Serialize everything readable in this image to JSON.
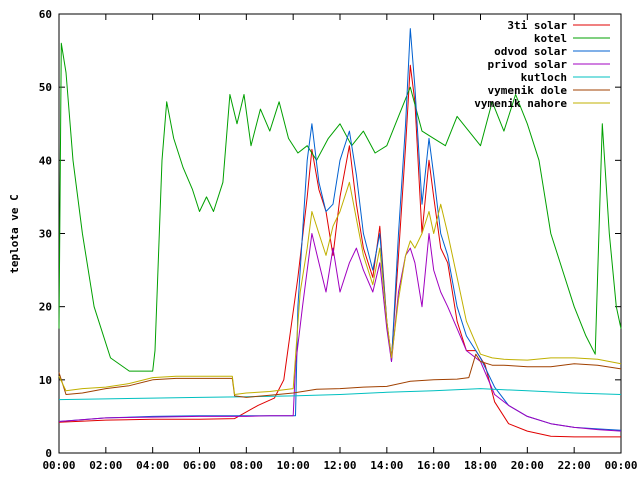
{
  "chart_data": {
    "type": "line",
    "title": "",
    "xlabel": "",
    "ylabel": "teplota ve C",
    "x_ticks": [
      "00:00",
      "02:00",
      "04:00",
      "06:00",
      "08:00",
      "10:00",
      "12:00",
      "14:00",
      "16:00",
      "18:00",
      "20:00",
      "22:00",
      "00:00"
    ],
    "y_ticks": [
      "0",
      "10",
      "20",
      "30",
      "40",
      "50",
      "60"
    ],
    "xlim": [
      0,
      24
    ],
    "ylim": [
      0,
      60
    ],
    "grid": false,
    "legend_position": "top-right",
    "series": [
      {
        "name": "3ti solar",
        "color": "#e00000",
        "points": [
          [
            0,
            4.2
          ],
          [
            2,
            4.5
          ],
          [
            4,
            4.6
          ],
          [
            6,
            4.6
          ],
          [
            7.5,
            4.7
          ],
          [
            8.5,
            6.5
          ],
          [
            9.2,
            7.5
          ],
          [
            9.6,
            10
          ],
          [
            10.2,
            24
          ],
          [
            10.6,
            35
          ],
          [
            10.8,
            41.5
          ],
          [
            11.1,
            36
          ],
          [
            11.4,
            33
          ],
          [
            11.7,
            27
          ],
          [
            12.0,
            35
          ],
          [
            12.4,
            42
          ],
          [
            12.7,
            34
          ],
          [
            13.0,
            28
          ],
          [
            13.4,
            24
          ],
          [
            13.7,
            31
          ],
          [
            14.0,
            18
          ],
          [
            14.2,
            13
          ],
          [
            14.5,
            27
          ],
          [
            14.8,
            42
          ],
          [
            15.0,
            53
          ],
          [
            15.2,
            48
          ],
          [
            15.5,
            30
          ],
          [
            15.8,
            40
          ],
          [
            16.0,
            35
          ],
          [
            16.3,
            28
          ],
          [
            16.6,
            26
          ],
          [
            17.0,
            18
          ],
          [
            17.4,
            14
          ],
          [
            17.8,
            14
          ],
          [
            18.2,
            12
          ],
          [
            18.6,
            7
          ],
          [
            19.2,
            4
          ],
          [
            20,
            3
          ],
          [
            21,
            2.3
          ],
          [
            22,
            2.2
          ],
          [
            23,
            2.2
          ],
          [
            24,
            2.2
          ]
        ]
      },
      {
        "name": "kotel",
        "color": "#00a000",
        "points": [
          [
            0,
            17
          ],
          [
            0.1,
            56
          ],
          [
            0.3,
            52
          ],
          [
            0.6,
            40
          ],
          [
            1.0,
            30
          ],
          [
            1.5,
            20
          ],
          [
            2.2,
            13
          ],
          [
            3,
            11.2
          ],
          [
            4,
            11.2
          ],
          [
            4.1,
            14
          ],
          [
            4.4,
            40
          ],
          [
            4.6,
            48
          ],
          [
            4.9,
            43
          ],
          [
            5.3,
            39
          ],
          [
            5.7,
            36
          ],
          [
            6.0,
            33
          ],
          [
            6.3,
            35
          ],
          [
            6.6,
            33
          ],
          [
            7.0,
            37
          ],
          [
            7.3,
            49
          ],
          [
            7.6,
            45
          ],
          [
            7.9,
            49
          ],
          [
            8.2,
            42
          ],
          [
            8.6,
            47
          ],
          [
            9.0,
            44
          ],
          [
            9.4,
            48
          ],
          [
            9.8,
            43
          ],
          [
            10.2,
            41
          ],
          [
            10.6,
            42
          ],
          [
            11.0,
            40
          ],
          [
            11.5,
            43
          ],
          [
            12.0,
            45
          ],
          [
            12.5,
            42
          ],
          [
            13.0,
            44
          ],
          [
            13.5,
            41
          ],
          [
            14.0,
            42
          ],
          [
            14.5,
            46
          ],
          [
            15.0,
            50
          ],
          [
            15.5,
            44
          ],
          [
            16.0,
            43
          ],
          [
            16.5,
            42
          ],
          [
            17.0,
            46
          ],
          [
            17.5,
            44
          ],
          [
            18.0,
            42
          ],
          [
            18.5,
            48
          ],
          [
            19.0,
            44
          ],
          [
            19.5,
            49
          ],
          [
            20.0,
            45
          ],
          [
            20.5,
            40
          ],
          [
            21.0,
            30
          ],
          [
            21.5,
            25
          ],
          [
            22.0,
            20
          ],
          [
            22.5,
            16
          ],
          [
            22.9,
            13.5
          ],
          [
            23.2,
            45
          ],
          [
            23.5,
            30
          ],
          [
            23.8,
            20
          ],
          [
            24,
            17
          ]
        ]
      },
      {
        "name": "odvod solar",
        "color": "#0060d0",
        "points": [
          [
            0,
            4.3
          ],
          [
            2,
            4.8
          ],
          [
            4,
            5.0
          ],
          [
            6,
            5.1
          ],
          [
            8,
            5.1
          ],
          [
            9,
            5.1
          ],
          [
            10.1,
            5.1
          ],
          [
            10.2,
            20
          ],
          [
            10.4,
            30
          ],
          [
            10.6,
            40
          ],
          [
            10.8,
            45
          ],
          [
            11.1,
            37
          ],
          [
            11.4,
            33
          ],
          [
            11.7,
            34
          ],
          [
            12.0,
            40
          ],
          [
            12.4,
            44
          ],
          [
            12.7,
            38
          ],
          [
            13.0,
            30
          ],
          [
            13.4,
            25
          ],
          [
            13.7,
            30
          ],
          [
            14.0,
            18
          ],
          [
            14.2,
            12.5
          ],
          [
            14.5,
            30
          ],
          [
            14.8,
            45
          ],
          [
            15.0,
            58
          ],
          [
            15.2,
            50
          ],
          [
            15.5,
            34
          ],
          [
            15.8,
            43
          ],
          [
            16.0,
            38
          ],
          [
            16.3,
            30
          ],
          [
            16.6,
            27
          ],
          [
            17.0,
            20
          ],
          [
            17.4,
            16
          ],
          [
            17.8,
            14
          ],
          [
            18.0,
            13
          ],
          [
            18.6,
            9
          ],
          [
            19.2,
            6.5
          ],
          [
            20,
            5
          ],
          [
            21,
            4
          ],
          [
            22,
            3.5
          ],
          [
            23,
            3.3
          ],
          [
            24,
            3.1
          ]
        ]
      },
      {
        "name": "privod solar",
        "color": "#a000c0",
        "points": [
          [
            0,
            4.3
          ],
          [
            2,
            4.8
          ],
          [
            4,
            4.9
          ],
          [
            6,
            5.0
          ],
          [
            8,
            5.0
          ],
          [
            9,
            5.1
          ],
          [
            10.0,
            5.1
          ],
          [
            10.1,
            12
          ],
          [
            10.4,
            20
          ],
          [
            10.8,
            30
          ],
          [
            11.1,
            26
          ],
          [
            11.4,
            22
          ],
          [
            11.7,
            28
          ],
          [
            12.0,
            22
          ],
          [
            12.4,
            26
          ],
          [
            12.7,
            28
          ],
          [
            13.0,
            25
          ],
          [
            13.4,
            22
          ],
          [
            13.7,
            26
          ],
          [
            14.0,
            17
          ],
          [
            14.2,
            12.5
          ],
          [
            14.5,
            22
          ],
          [
            14.8,
            27
          ],
          [
            15.0,
            28
          ],
          [
            15.2,
            26
          ],
          [
            15.5,
            20
          ],
          [
            15.8,
            30
          ],
          [
            16.0,
            25
          ],
          [
            16.3,
            22
          ],
          [
            16.6,
            20
          ],
          [
            17.0,
            17
          ],
          [
            17.4,
            14
          ],
          [
            17.8,
            13
          ],
          [
            18.0,
            12.5
          ],
          [
            18.6,
            8
          ],
          [
            19.2,
            6.5
          ],
          [
            20,
            5
          ],
          [
            21,
            4
          ],
          [
            22,
            3.5
          ],
          [
            23,
            3.2
          ],
          [
            24,
            3.0
          ]
        ]
      },
      {
        "name": "kutloch",
        "color": "#00c0c0",
        "points": [
          [
            0,
            7.3
          ],
          [
            2,
            7.4
          ],
          [
            4,
            7.5
          ],
          [
            6,
            7.6
          ],
          [
            8,
            7.7
          ],
          [
            10,
            7.8
          ],
          [
            12,
            8.0
          ],
          [
            14,
            8.3
          ],
          [
            16,
            8.5
          ],
          [
            18,
            8.8
          ],
          [
            20,
            8.5
          ],
          [
            22,
            8.2
          ],
          [
            24,
            8.0
          ]
        ]
      },
      {
        "name": "vymenik dole",
        "color": "#a04000",
        "points": [
          [
            0,
            11
          ],
          [
            0.3,
            8
          ],
          [
            1,
            8.2
          ],
          [
            2,
            8.8
          ],
          [
            3,
            9.2
          ],
          [
            4,
            10
          ],
          [
            5,
            10.2
          ],
          [
            6,
            10.2
          ],
          [
            7.4,
            10.2
          ],
          [
            7.5,
            7.8
          ],
          [
            8,
            7.6
          ],
          [
            9,
            7.9
          ],
          [
            10,
            8.2
          ],
          [
            11,
            8.7
          ],
          [
            12,
            8.8
          ],
          [
            13,
            9.0
          ],
          [
            14,
            9.1
          ],
          [
            15,
            9.8
          ],
          [
            16,
            10.0
          ],
          [
            17,
            10.1
          ],
          [
            17.5,
            10.3
          ],
          [
            17.8,
            13.5
          ],
          [
            18.0,
            12.5
          ],
          [
            18.5,
            12.0
          ],
          [
            19,
            12.0
          ],
          [
            20,
            11.8
          ],
          [
            21,
            11.8
          ],
          [
            22,
            12.2
          ],
          [
            23,
            12.0
          ],
          [
            24,
            11.5
          ]
        ]
      },
      {
        "name": "vymenik nahore",
        "color": "#c0b000",
        "points": [
          [
            0,
            10.5
          ],
          [
            0.3,
            8.5
          ],
          [
            1,
            8.8
          ],
          [
            2,
            9.0
          ],
          [
            3,
            9.5
          ],
          [
            4,
            10.3
          ],
          [
            5,
            10.5
          ],
          [
            6,
            10.5
          ],
          [
            7.4,
            10.5
          ],
          [
            7.5,
            8.0
          ],
          [
            8,
            8.2
          ],
          [
            9,
            8.4
          ],
          [
            10,
            8.8
          ],
          [
            10.3,
            22
          ],
          [
            10.6,
            28
          ],
          [
            10.8,
            33
          ],
          [
            11.1,
            30
          ],
          [
            11.4,
            27
          ],
          [
            11.7,
            31
          ],
          [
            12.0,
            33
          ],
          [
            12.4,
            37
          ],
          [
            12.7,
            32
          ],
          [
            13.0,
            27
          ],
          [
            13.4,
            23
          ],
          [
            13.7,
            28
          ],
          [
            14.0,
            18
          ],
          [
            14.2,
            13
          ],
          [
            14.5,
            21
          ],
          [
            14.8,
            27
          ],
          [
            15.0,
            29
          ],
          [
            15.2,
            28
          ],
          [
            15.5,
            30
          ],
          [
            15.8,
            33
          ],
          [
            16.0,
            30
          ],
          [
            16.3,
            34
          ],
          [
            16.6,
            30
          ],
          [
            17.0,
            24
          ],
          [
            17.4,
            18
          ],
          [
            17.8,
            15
          ],
          [
            18.0,
            13.5
          ],
          [
            18.5,
            13.0
          ],
          [
            19,
            12.8
          ],
          [
            20,
            12.7
          ],
          [
            21,
            13.0
          ],
          [
            22,
            13.0
          ],
          [
            23,
            12.8
          ],
          [
            24,
            12.2
          ]
        ]
      }
    ]
  }
}
